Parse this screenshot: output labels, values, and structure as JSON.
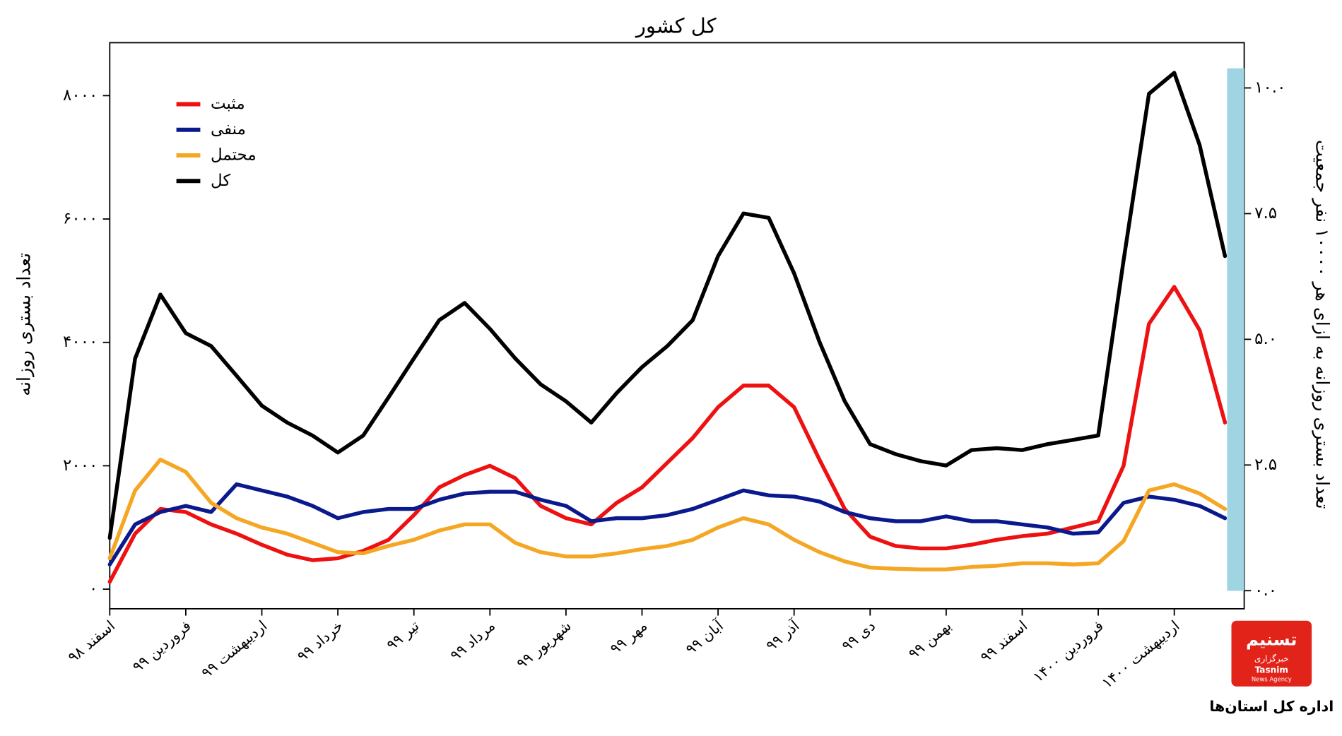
{
  "chart_data": {
    "type": "line",
    "title": "کل کشور",
    "y_label": "تعداد بستری روزانه",
    "y2_label": "تعداد بستری روزانه به ازای هر ۱۰۰۰۰ نفر جمعیت",
    "categories": [
      "اسفند ۹۸",
      null,
      null,
      "فروردین ۹۹",
      null,
      null,
      "اردیبهشت ۹۹",
      null,
      null,
      "خرداد ۹۹",
      null,
      null,
      "تیر ۹۹",
      null,
      null,
      "مرداد ۹۹",
      null,
      null,
      "شهریور ۹۹",
      null,
      null,
      "مهر ۹۹",
      null,
      null,
      "آبان ۹۹",
      null,
      null,
      "آذر ۹۹",
      null,
      null,
      "دی ۹۹",
      null,
      null,
      "بهمن ۹۹",
      null,
      null,
      "اسفند ۹۹",
      null,
      null,
      "فروردین ۱۴۰۰",
      null,
      null,
      "اردیبهشت ۱۴۰۰",
      null,
      null
    ],
    "series": [
      {
        "name": "مثبت",
        "color": "#ee1111",
        "values": [
          120,
          900,
          1300,
          1250,
          1050,
          900,
          720,
          560,
          470,
          500,
          620,
          800,
          1200,
          1650,
          1850,
          2000,
          1800,
          1350,
          1150,
          1050,
          1400,
          1650,
          2050,
          2450,
          2950,
          3300,
          3300,
          2950,
          2100,
          1300,
          850,
          700,
          660,
          660,
          720,
          800,
          860,
          900,
          1000,
          1100,
          2000,
          4300,
          4900,
          4200,
          2700
        ]
      },
      {
        "name": "منفی",
        "color": "#0a1a8c",
        "values": [
          400,
          1050,
          1250,
          1350,
          1250,
          1700,
          1600,
          1500,
          1350,
          1150,
          1250,
          1300,
          1300,
          1450,
          1550,
          1580,
          1580,
          1450,
          1350,
          1100,
          1150,
          1150,
          1200,
          1300,
          1450,
          1600,
          1520,
          1500,
          1420,
          1250,
          1150,
          1100,
          1100,
          1180,
          1100,
          1100,
          1050,
          1000,
          900,
          920,
          1400,
          1500,
          1450,
          1350,
          1150
        ]
      },
      {
        "name": "محتمل",
        "color": "#f5a623",
        "values": [
          500,
          1600,
          2100,
          1900,
          1400,
          1150,
          1000,
          900,
          750,
          600,
          580,
          700,
          800,
          950,
          1050,
          1050,
          750,
          600,
          530,
          530,
          580,
          650,
          700,
          800,
          1000,
          1150,
          1050,
          800,
          600,
          450,
          350,
          330,
          320,
          320,
          360,
          380,
          420,
          420,
          400,
          420,
          780,
          1600,
          1700,
          1550,
          1300
        ]
      },
      {
        "name": "کل",
        "color": "#000000",
        "values": [
          830,
          3740,
          4775,
          4150,
          3940,
          3460,
          2975,
          2700,
          2490,
          2215,
          2490,
          3110,
          3740,
          4360,
          4640,
          4220,
          3740,
          3320,
          3045,
          2700,
          3180,
          3600,
          3940,
          4360,
          5400,
          6090,
          6020,
          5120,
          4010,
          3045,
          2350,
          2190,
          2075,
          2005,
          2255,
          2285,
          2255,
          2350,
          2420,
          2490,
          5330,
          8030,
          8370,
          7200,
          5400
        ]
      }
    ],
    "ylim": [
      -318,
      8858
    ],
    "yticks": [
      {
        "value": 0,
        "label": "۰"
      },
      {
        "value": 2000,
        "label": "۲۰۰۰"
      },
      {
        "value": 4000,
        "label": "۴۰۰۰"
      },
      {
        "value": 6000,
        "label": "۶۰۰۰"
      },
      {
        "value": 8000,
        "label": "۸۰۰۰"
      }
    ],
    "y2lim": [
      -0.36,
      10.9
    ],
    "y2ticks": [
      {
        "value": 0,
        "label": "۰.۰"
      },
      {
        "value": 2.5,
        "label": "۲.۵"
      },
      {
        "value": 5,
        "label": "۵.۰"
      },
      {
        "value": 7.5,
        "label": "۷.۵"
      },
      {
        "value": 10,
        "label": "۱۰.۰"
      }
    ],
    "legend": "upper left",
    "grid": false
  },
  "branding": {
    "logo_title": "تسنیم",
    "logo_subtitle": "خبرگزاری",
    "logo_english": "Tasnim",
    "logo_english_sub": "News Agency",
    "caption": "اداره کل استان‌ها"
  }
}
